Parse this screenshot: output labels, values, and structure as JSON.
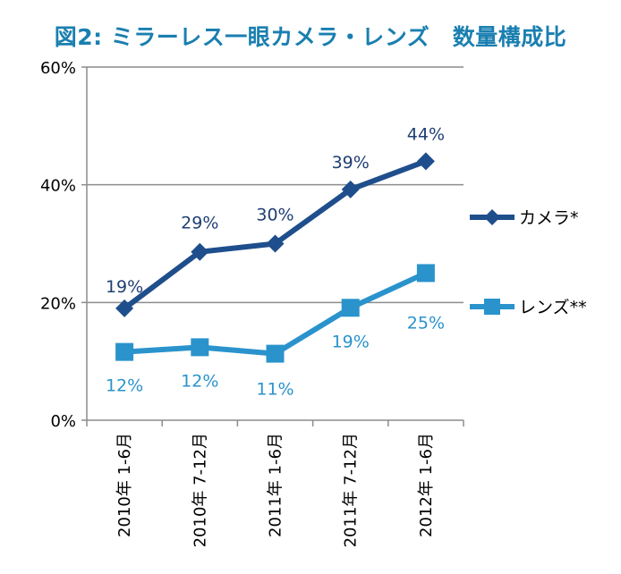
{
  "chart_data": {
    "type": "line",
    "title": "図2: ミラーレス一眼カメラ・レンズ　数量構成比",
    "categories": [
      "2010年 1-6月",
      "2010年 7-12月",
      "2011年 1-6月",
      "2011年 7-12月",
      "2012年 1-6月"
    ],
    "series": [
      {
        "name": "カメラ*",
        "values": [
          19,
          28.6,
          30,
          39.2,
          44
        ],
        "labels": [
          "19%",
          "29%",
          "30%",
          "39%",
          "44%"
        ],
        "color": "#1f4e8c",
        "marker": "diamond"
      },
      {
        "name": "レンズ**",
        "values": [
          11.6,
          12.4,
          11.3,
          19.1,
          25
        ],
        "labels": [
          "12%",
          "12%",
          "11%",
          "19%",
          "25%"
        ],
        "color": "#2a93cc",
        "marker": "square"
      }
    ],
    "ylim": [
      0,
      60
    ],
    "yticks": [
      "0%",
      "20%",
      "40%",
      "60%"
    ],
    "ytick_values": [
      0,
      20,
      40,
      60
    ],
    "grid": true,
    "legend": "right",
    "xlabel": "",
    "ylabel": ""
  }
}
